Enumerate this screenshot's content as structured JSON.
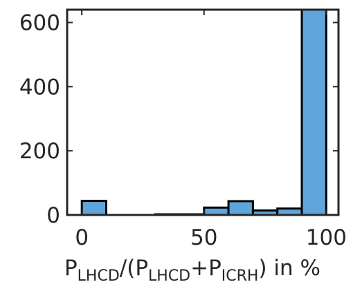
{
  "chart_data": {
    "type": "bar",
    "title": "",
    "xlabel": {
      "p1": "P",
      "s1": "LHCD",
      "p2": "/(P",
      "s2": "LHCD",
      "p3": "+P",
      "s3": "ICRH",
      "p4": ") in %"
    },
    "ylabel": "",
    "xlim": [
      -6,
      105
    ],
    "ylim": [
      0,
      640
    ],
    "grid": false,
    "legend": "none",
    "bar_color": "#5DA5DA",
    "edge_color": "#000000",
    "bins": [
      {
        "start": 0,
        "end": 10,
        "count": 44
      },
      {
        "start": 10,
        "end": 20,
        "count": 0
      },
      {
        "start": 20,
        "end": 30,
        "count": 0
      },
      {
        "start": 30,
        "end": 40,
        "count": 2
      },
      {
        "start": 40,
        "end": 50,
        "count": 2
      },
      {
        "start": 50,
        "end": 60,
        "count": 23
      },
      {
        "start": 60,
        "end": 70,
        "count": 43
      },
      {
        "start": 70,
        "end": 80,
        "count": 14
      },
      {
        "start": 80,
        "end": 90,
        "count": 20
      },
      {
        "start": 90,
        "end": 100,
        "count": 640
      }
    ],
    "xticks": [
      {
        "value": 0,
        "label": "0"
      },
      {
        "value": 50,
        "label": "50"
      },
      {
        "value": 100,
        "label": "100"
      }
    ],
    "yticks": [
      {
        "value": 0,
        "label": "0"
      },
      {
        "value": 200,
        "label": "200"
      },
      {
        "value": 400,
        "label": "400"
      },
      {
        "value": 600,
        "label": "600"
      }
    ]
  }
}
